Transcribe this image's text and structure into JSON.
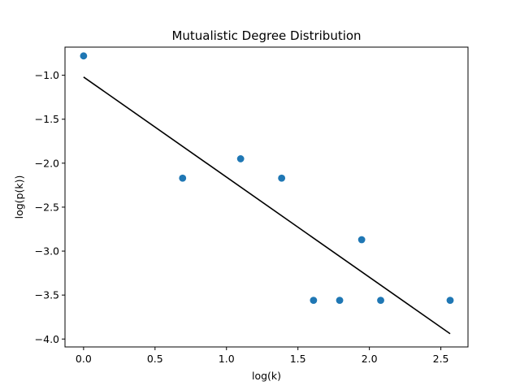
{
  "chart_data": {
    "type": "scatter",
    "title": "Mutualistic Degree Distribution",
    "xlabel": "log(k)",
    "ylabel": "log(p(k))",
    "xlim": [
      -0.13,
      2.69
    ],
    "ylim": [
      -4.09,
      -0.68
    ],
    "xticks": [
      0.0,
      0.5,
      1.0,
      1.5,
      2.0,
      2.5
    ],
    "xtick_labels": [
      "0.0",
      "0.5",
      "1.0",
      "1.5",
      "2.0",
      "2.5"
    ],
    "yticks": [
      -1.0,
      -1.5,
      -2.0,
      -2.5,
      -3.0,
      -3.5,
      -4.0
    ],
    "ytick_labels": [
      "−1.0",
      "−1.5",
      "−2.0",
      "−2.5",
      "−3.0",
      "−3.5",
      "−4.0"
    ],
    "grid": false,
    "series": [
      {
        "type": "scatter",
        "color": "#1f77b4",
        "x": [
          0.0,
          0.693,
          1.099,
          1.386,
          1.609,
          1.792,
          1.946,
          2.079,
          2.565
        ],
        "y": [
          -0.78,
          -2.17,
          -1.95,
          -2.17,
          -3.56,
          -3.56,
          -2.87,
          -3.56,
          -3.56
        ]
      },
      {
        "type": "line",
        "color": "#000000",
        "x": [
          0.0,
          2.565
        ],
        "y": [
          -1.02,
          -3.94
        ]
      }
    ]
  }
}
